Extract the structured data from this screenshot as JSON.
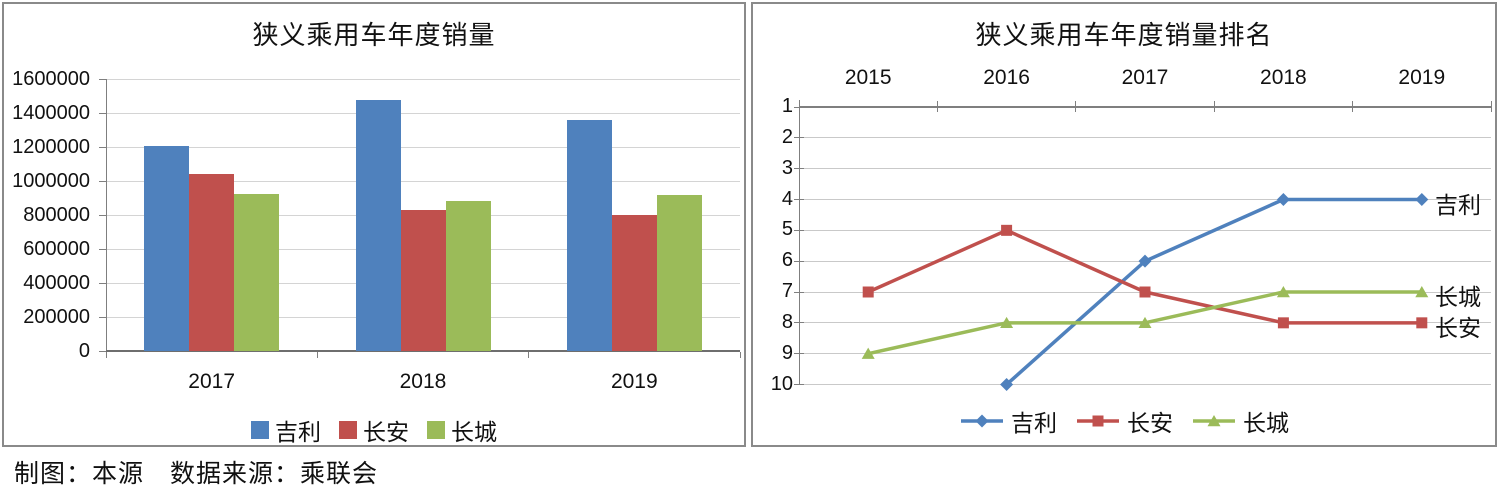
{
  "page": {
    "caption": "制图：本源　数据来源：乘联会"
  },
  "colors": {
    "geely_blue": "#4F81BD",
    "changan_red": "#C0504D",
    "greatwall_green": "#9BBB59",
    "gridline": "#D4D4D4",
    "axis": "#7F7F7F",
    "panel_border": "#8A8A8A"
  },
  "chart_data": [
    {
      "type": "bar",
      "title": "狭义乘用车年度销量",
      "categories": [
        "2017",
        "2018",
        "2019"
      ],
      "series": [
        {
          "name": "吉利",
          "color": "#4F81BD",
          "values": [
            1205000,
            1475000,
            1360000
          ]
        },
        {
          "name": "长安",
          "color": "#C0504D",
          "values": [
            1040000,
            830000,
            800000
          ]
        },
        {
          "name": "长城",
          "color": "#9BBB59",
          "values": [
            925000,
            885000,
            915000
          ]
        }
      ],
      "ylim": [
        0,
        1600000
      ],
      "ytick_step": 200000,
      "yticks": [
        "1600000",
        "1400000",
        "1200000",
        "1000000",
        "800000",
        "600000",
        "400000",
        "200000",
        "0"
      ],
      "grid": true,
      "legend_position": "bottom"
    },
    {
      "type": "line",
      "title": "狭义乘用车年度销量排名",
      "x": [
        "2015",
        "2016",
        "2017",
        "2018",
        "2019"
      ],
      "ylim": [
        1,
        10
      ],
      "y_reversed": true,
      "yticks": [
        "1",
        "2",
        "3",
        "4",
        "5",
        "6",
        "7",
        "8",
        "9",
        "10"
      ],
      "series": [
        {
          "name": "吉利",
          "color": "#4F81BD",
          "marker": "diamond",
          "values": [
            null,
            10,
            6,
            4,
            4
          ]
        },
        {
          "name": "长安",
          "color": "#C0504D",
          "marker": "square",
          "values": [
            7,
            5,
            7,
            8,
            8
          ]
        },
        {
          "name": "长城",
          "color": "#9BBB59",
          "marker": "triangle",
          "values": [
            9,
            8,
            8,
            7,
            7
          ]
        }
      ],
      "end_labels": true,
      "grid": true,
      "legend_position": "bottom",
      "x_axis_position": "top"
    }
  ]
}
